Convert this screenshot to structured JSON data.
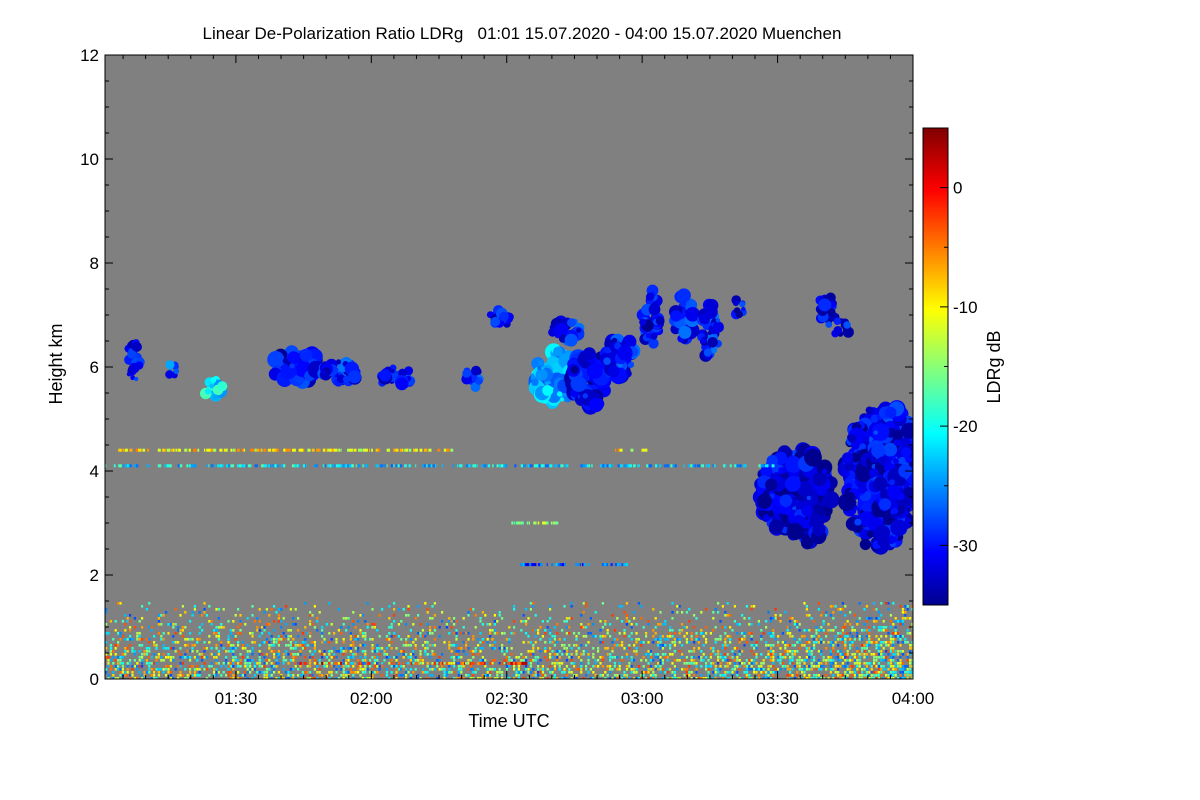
{
  "chart_data": {
    "type": "heatmap",
    "title": "Linear De-Polarization Ratio LDRg   01:01 15.07.2020 - 04:00 15.07.2020 Muenchen",
    "xlabel": "Time UTC",
    "ylabel": "Height km",
    "colorbar_label": "LDRg dB",
    "x_range_minutes": [
      61,
      240
    ],
    "x_ticks": [
      {
        "minute": 90,
        "label": "01:30"
      },
      {
        "minute": 120,
        "label": "02:00"
      },
      {
        "minute": 150,
        "label": "02:30"
      },
      {
        "minute": 180,
        "label": "03:00"
      },
      {
        "minute": 210,
        "label": "03:30"
      },
      {
        "minute": 240,
        "label": "04:00"
      }
    ],
    "ylim": [
      0,
      12
    ],
    "y_ticks": [
      {
        "value": 0,
        "label": "0"
      },
      {
        "value": 2,
        "label": "2"
      },
      {
        "value": 4,
        "label": "4"
      },
      {
        "value": 6,
        "label": "6"
      },
      {
        "value": 8,
        "label": "8"
      },
      {
        "value": 10,
        "label": "10"
      },
      {
        "value": 12,
        "label": "12"
      }
    ],
    "color_range_db": [
      -35,
      5
    ],
    "colorbar_ticks": [
      {
        "value": 0,
        "label": "0"
      },
      {
        "value": -10,
        "label": "-10"
      },
      {
        "value": -20,
        "label": "-20"
      },
      {
        "value": -30,
        "label": "-30"
      }
    ],
    "no_data_color": "#808080",
    "clouds": [
      {
        "name": "midlevel-cloud-1",
        "t0": 66,
        "t1": 69,
        "h0": 5.7,
        "h1": 6.6,
        "ldr": -31
      },
      {
        "name": "midlevel-cloud-2",
        "t0": 75,
        "t1": 77,
        "h0": 5.7,
        "h1": 6.2,
        "ldr": -28
      },
      {
        "name": "midlevel-cloud-3",
        "t0": 83,
        "t1": 87,
        "h0": 5.4,
        "h1": 5.8,
        "ldr": -21
      },
      {
        "name": "midlevel-cloud-4",
        "t0": 98,
        "t1": 109,
        "h0": 5.7,
        "h1": 6.3,
        "ldr": -31
      },
      {
        "name": "midlevel-cloud-5",
        "t0": 109,
        "t1": 117,
        "h0": 5.7,
        "h1": 6.1,
        "ldr": -30
      },
      {
        "name": "midlevel-cloud-6",
        "t0": 122,
        "t1": 129,
        "h0": 5.6,
        "h1": 6.0,
        "ldr": -31
      },
      {
        "name": "midlevel-cloud-7",
        "t0": 141,
        "t1": 144,
        "h0": 5.6,
        "h1": 6.1,
        "ldr": -29
      },
      {
        "name": "midlevel-cloud-8",
        "t0": 156,
        "t1": 165,
        "h0": 5.3,
        "h1": 6.3,
        "ldr": -24
      },
      {
        "name": "midlevel-cloud-9",
        "t0": 164,
        "t1": 173,
        "h0": 5.2,
        "h1": 6.3,
        "ldr": -32
      },
      {
        "name": "midlevel-cloud-10",
        "t0": 146,
        "t1": 151,
        "h0": 6.8,
        "h1": 7.1,
        "ldr": -31
      },
      {
        "name": "midlevel-cloud-11",
        "t0": 160,
        "t1": 167,
        "h0": 6.5,
        "h1": 6.9,
        "ldr": -30
      },
      {
        "name": "midlevel-cloud-12",
        "t0": 172,
        "t1": 178,
        "h0": 5.8,
        "h1": 6.6,
        "ldr": -30
      },
      {
        "name": "midlevel-cloud-13",
        "t0": 180,
        "t1": 184,
        "h0": 6.4,
        "h1": 7.5,
        "ldr": -31
      },
      {
        "name": "midlevel-cloud-14",
        "t0": 187,
        "t1": 192,
        "h0": 6.5,
        "h1": 7.4,
        "ldr": -30
      },
      {
        "name": "midlevel-cloud-15",
        "t0": 193,
        "t1": 197,
        "h0": 6.1,
        "h1": 7.2,
        "ldr": -30
      },
      {
        "name": "midlevel-cloud-16",
        "t0": 200,
        "t1": 203,
        "h0": 7.0,
        "h1": 7.3,
        "ldr": -31
      },
      {
        "name": "midlevel-cloud-17",
        "t0": 219,
        "t1": 223,
        "h0": 6.8,
        "h1": 7.4,
        "ldr": -31
      },
      {
        "name": "midlevel-cloud-18",
        "t0": 222,
        "t1": 226,
        "h0": 6.6,
        "h1": 6.9,
        "ldr": -31
      },
      {
        "name": "lower-cloud-1",
        "t0": 206,
        "t1": 222,
        "h0": 2.8,
        "h1": 4.4,
        "ldr": -32
      },
      {
        "name": "lower-cloud-2",
        "t0": 213,
        "t1": 220,
        "h0": 2.6,
        "h1": 3.3,
        "ldr": -32
      },
      {
        "name": "lower-cloud-3",
        "t0": 225,
        "t1": 240,
        "h0": 2.5,
        "h1": 5.2,
        "ldr": -32
      },
      {
        "name": "lower-cloud-4",
        "t0": 231,
        "t1": 240,
        "h0": 3.2,
        "h1": 5.2,
        "ldr": -31
      }
    ],
    "layers": [
      {
        "name": "layer-4-4km",
        "t0": 61,
        "t1": 138,
        "h": 4.4,
        "ldr": -10
      },
      {
        "name": "layer-4-4km-b",
        "t0": 174,
        "t1": 181,
        "h": 4.4,
        "ldr": -10
      },
      {
        "name": "layer-4-1km",
        "t0": 61,
        "t1": 210,
        "h": 4.1,
        "ldr": -22
      },
      {
        "name": "layer-3-0km",
        "t0": 151,
        "t1": 161,
        "h": 3.0,
        "ldr": -15
      },
      {
        "name": "layer-2-2km",
        "t0": 153,
        "t1": 177,
        "h": 2.2,
        "ldr": -27
      },
      {
        "name": "layer-0-3km",
        "t0": 104,
        "t1": 154,
        "h": 0.3,
        "ldr": -2
      }
    ],
    "boundary_layer": {
      "t0": 61,
      "t1": 240,
      "h0": 0.0,
      "h1": 1.5,
      "ldr_min": -28,
      "ldr_max": -2
    }
  }
}
